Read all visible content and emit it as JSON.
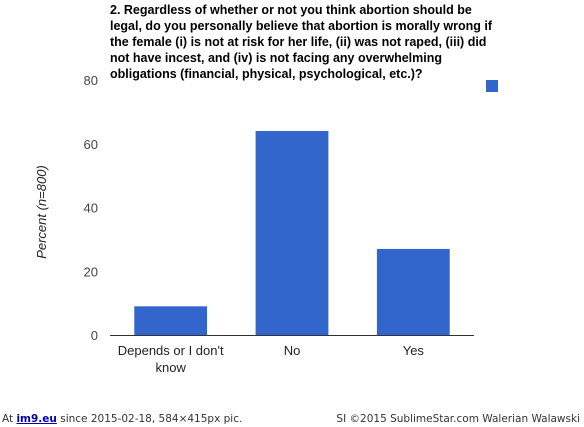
{
  "chart_data": {
    "type": "bar",
    "title": "2. Regardless of whether or not you think abortion should be legal, do you personally believe that abortion is morally wrong if the female (i) is not at risk for her life, (ii) was not raped, (iii) did not have incest, and (iv) is not facing any overwhelming obligations (financial, physical, psychological, etc.)?",
    "title_lines": [
      "2. Regardless of whether or not you think abortion should be",
      "legal, do you personally believe that abortion is morally wrong if",
      "the female (i) is not at risk for her life, (ii) was not raped, (iii) did",
      "not have incest, and (iv) is not facing any overwhelming",
      "obligations (financial, physical, psychological, etc.)?"
    ],
    "categories": [
      "Depends or I don't know",
      "No",
      "Yes"
    ],
    "category_lines": [
      [
        "Depends or I don't",
        "know"
      ],
      [
        "No"
      ],
      [
        "Yes"
      ]
    ],
    "values": [
      9,
      64,
      27
    ],
    "ylabel_prefix": "Percent (",
    "ylabel_italic": "n",
    "ylabel_suffix": "=800)",
    "yticks": [
      0,
      20,
      40,
      60,
      80
    ],
    "ylim": [
      0,
      80
    ],
    "grid": false,
    "legend": "top-right",
    "bar_color": "#3366cc"
  },
  "footer": {
    "prefix": "At ",
    "site": "im9.eu",
    "suffix": " since 2015-02-18, 584×415px pic.",
    "right": "SI ©2015 SublimeStar.com Walerian Walawski"
  }
}
